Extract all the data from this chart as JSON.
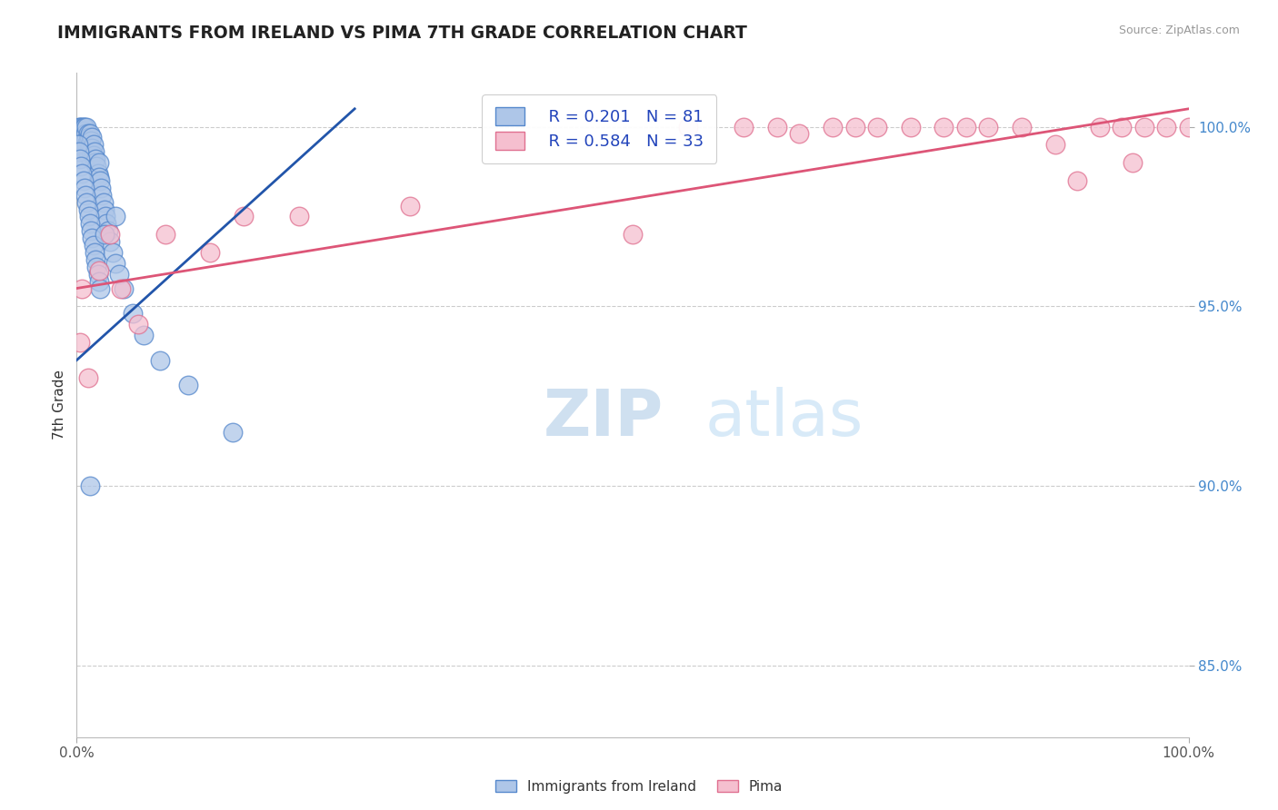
{
  "title": "IMMIGRANTS FROM IRELAND VS PIMA 7TH GRADE CORRELATION CHART",
  "source": "Source: ZipAtlas.com",
  "ylabel": "7th Grade",
  "legend_r_blue": "R = 0.201",
  "legend_n_blue": "N = 81",
  "legend_r_pink": "R = 0.584",
  "legend_n_pink": "N = 33",
  "legend_label_blue": "Immigrants from Ireland",
  "legend_label_pink": "Pima",
  "blue_color": "#aec6e8",
  "blue_edge": "#5588cc",
  "pink_color": "#f5bfcf",
  "pink_edge": "#e07090",
  "blue_line_color": "#2255aa",
  "pink_line_color": "#dd5577",
  "watermark_zip": "ZIP",
  "watermark_atlas": "atlas",
  "xlim": [
    0,
    100
  ],
  "ylim": [
    83.0,
    101.5
  ],
  "ytick_vals": [
    85.0,
    90.0,
    95.0,
    100.0
  ],
  "ytick_labels": [
    "85.0%",
    "90.0%",
    "95.0%",
    "100.0%"
  ],
  "blue_scatter_x": [
    0.2,
    0.3,
    0.3,
    0.4,
    0.4,
    0.5,
    0.5,
    0.5,
    0.6,
    0.6,
    0.6,
    0.7,
    0.7,
    0.7,
    0.8,
    0.8,
    0.8,
    0.9,
    0.9,
    1.0,
    1.0,
    1.0,
    1.1,
    1.1,
    1.2,
    1.2,
    1.3,
    1.3,
    1.4,
    1.4,
    1.5,
    1.5,
    1.6,
    1.6,
    1.7,
    1.8,
    1.9,
    2.0,
    2.0,
    2.1,
    2.2,
    2.3,
    2.4,
    2.5,
    2.6,
    2.7,
    2.8,
    3.0,
    3.2,
    3.5,
    3.8,
    4.2,
    5.0,
    6.0,
    7.5,
    10.0,
    14.0,
    0.1,
    0.2,
    0.3,
    0.4,
    0.5,
    0.6,
    0.7,
    0.8,
    0.9,
    1.0,
    1.1,
    1.2,
    1.3,
    1.4,
    1.5,
    1.6,
    1.7,
    1.8,
    1.9,
    2.0,
    2.1,
    2.5,
    3.5,
    1.2
  ],
  "blue_scatter_y": [
    100.0,
    99.8,
    100.0,
    99.9,
    99.7,
    100.0,
    99.8,
    99.6,
    100.0,
    99.9,
    99.5,
    100.0,
    99.7,
    99.4,
    99.8,
    99.6,
    99.3,
    100.0,
    99.5,
    99.8,
    99.6,
    99.2,
    99.7,
    99.4,
    99.8,
    99.5,
    99.6,
    99.3,
    99.7,
    99.4,
    99.5,
    99.2,
    99.3,
    99.0,
    99.1,
    98.9,
    98.7,
    99.0,
    98.6,
    98.5,
    98.3,
    98.1,
    97.9,
    97.7,
    97.5,
    97.3,
    97.1,
    96.8,
    96.5,
    96.2,
    95.9,
    95.5,
    94.8,
    94.2,
    93.5,
    92.8,
    91.5,
    99.5,
    99.3,
    99.1,
    98.9,
    98.7,
    98.5,
    98.3,
    98.1,
    97.9,
    97.7,
    97.5,
    97.3,
    97.1,
    96.9,
    96.7,
    96.5,
    96.3,
    96.1,
    95.9,
    95.7,
    95.5,
    97.0,
    97.5,
    90.0
  ],
  "pink_scatter_x": [
    0.3,
    0.5,
    1.0,
    2.0,
    3.0,
    4.0,
    5.5,
    8.0,
    12.0,
    20.0,
    30.0,
    50.0,
    55.0,
    60.0,
    63.0,
    65.0,
    68.0,
    70.0,
    72.0,
    75.0,
    78.0,
    80.0,
    82.0,
    85.0,
    88.0,
    90.0,
    92.0,
    94.0,
    96.0,
    95.0,
    98.0,
    100.0,
    15.0
  ],
  "pink_scatter_y": [
    94.0,
    95.5,
    93.0,
    96.0,
    97.0,
    95.5,
    94.5,
    97.0,
    96.5,
    97.5,
    97.8,
    97.0,
    100.0,
    100.0,
    100.0,
    99.8,
    100.0,
    100.0,
    100.0,
    100.0,
    100.0,
    100.0,
    100.0,
    100.0,
    99.5,
    98.5,
    100.0,
    100.0,
    100.0,
    99.0,
    100.0,
    100.0,
    97.5
  ],
  "blue_line_x": [
    0.0,
    25.0
  ],
  "blue_line_y": [
    93.5,
    100.5
  ],
  "pink_line_x": [
    0.0,
    100.0
  ],
  "pink_line_y": [
    95.5,
    100.5
  ]
}
